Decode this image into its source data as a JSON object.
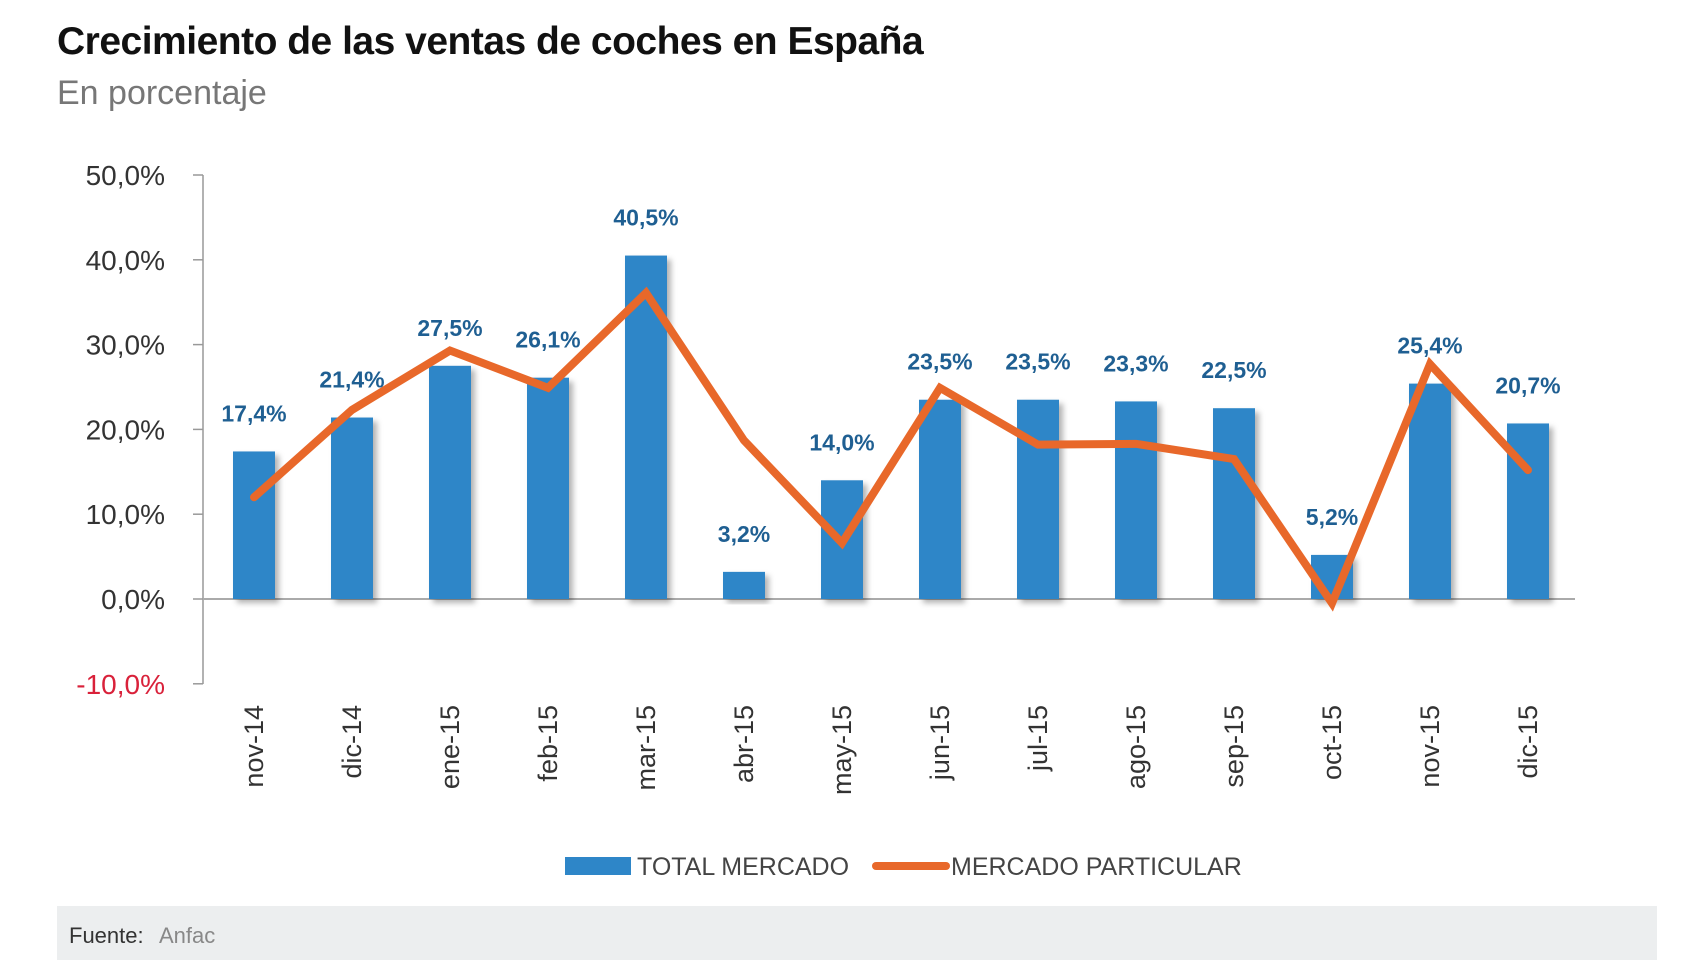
{
  "chart_data": {
    "type": "bar",
    "title": "Crecimiento de las ventas de coches en España",
    "subtitle": "En porcentaje",
    "categories": [
      "nov-14",
      "dic-14",
      "ene-15",
      "feb-15",
      "mar-15",
      "abr-15",
      "may-15",
      "jun-15",
      "jul-15",
      "ago-15",
      "sep-15",
      "oct-15",
      "nov-15",
      "dic-15"
    ],
    "series": [
      {
        "name": "TOTAL MERCADO",
        "type": "bar",
        "color": "#2e86c8",
        "values": [
          17.4,
          21.4,
          27.5,
          26.1,
          40.5,
          3.2,
          14.0,
          23.5,
          23.5,
          23.3,
          22.5,
          5.2,
          25.4,
          20.7
        ],
        "labels": [
          "17,4%",
          "21,4%",
          "27,5%",
          "26,1%",
          "40,5%",
          "3,2%",
          "14,0%",
          "23,5%",
          "23,5%",
          "23,3%",
          "22,5%",
          "5,2%",
          "25,4%",
          "20,7%"
        ]
      },
      {
        "name": "MERCADO PARTICULAR",
        "type": "line",
        "color": "#e8682a",
        "values": [
          12.0,
          22.3,
          29.3,
          24.9,
          36.1,
          18.7,
          6.6,
          24.9,
          18.2,
          18.3,
          16.5,
          -0.5,
          27.7,
          15.2
        ]
      }
    ],
    "ylim": [
      -10,
      50
    ],
    "yticks": [
      50,
      40,
      30,
      20,
      10,
      0,
      -10
    ],
    "ytick_labels": [
      "50,0%",
      "40,0%",
      "30,0%",
      "20,0%",
      "10,0%",
      "0,0%",
      "-10,0%"
    ],
    "negative_tick_color": "#d9213a",
    "label_color": "#1f5f92",
    "grid": false,
    "legend": "bottom"
  },
  "footer": {
    "source_label": "Fuente:",
    "source_value": "Anfac"
  }
}
